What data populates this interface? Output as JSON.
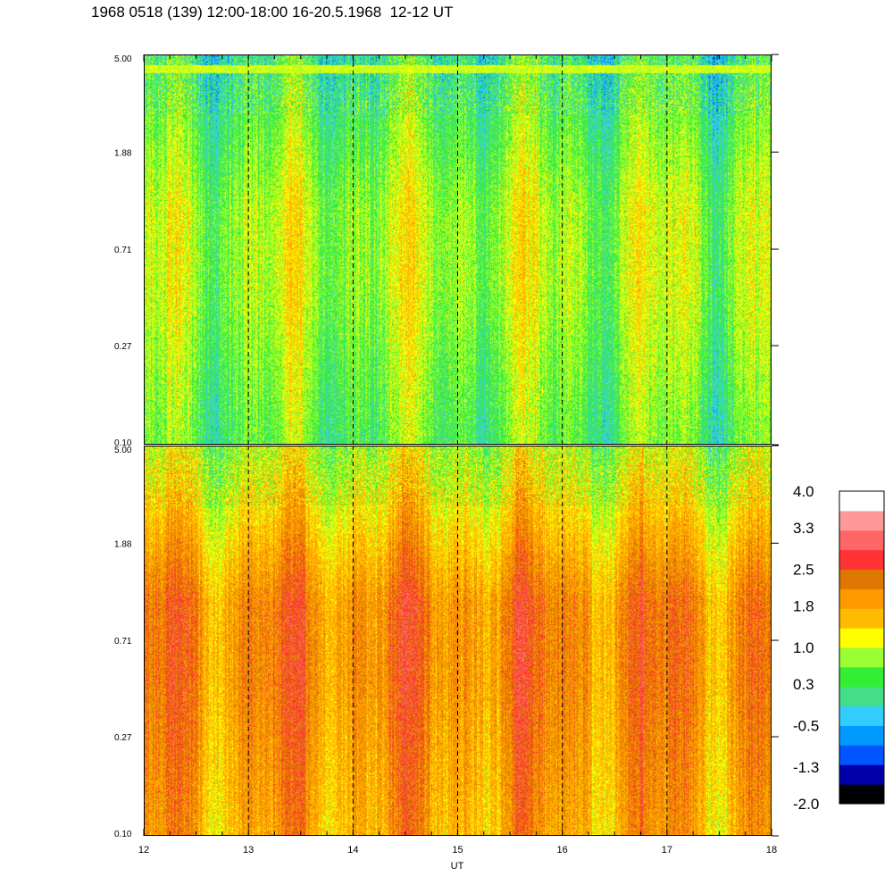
{
  "header": {
    "title": "1968 0518 (139) 12:00-18:00 16-20.5.1968  12-12 UT"
  },
  "chart_data": [
    {
      "type": "heatmap",
      "panel": "top",
      "title": "",
      "xlabel": "",
      "ylabel": "",
      "xlim": [
        12,
        18
      ],
      "ylim": [
        0.1,
        5.0
      ],
      "yscale": "log",
      "yticks": [
        "5.00",
        "1.88",
        "0.71",
        "0.27",
        "0.10"
      ],
      "ytick_values": [
        5.0,
        1.88,
        0.71,
        0.27,
        0.1
      ],
      "vlines": [
        13,
        14,
        15,
        16,
        17
      ],
      "description_values": {
        "high_band": 0.2,
        "mid_band": 0.9,
        "low_band": 0.5
      }
    },
    {
      "type": "heatmap",
      "panel": "bottom",
      "title": "",
      "xlabel": "UT",
      "ylabel": "",
      "xlim": [
        12,
        18
      ],
      "ylim": [
        0.1,
        5.0
      ],
      "yscale": "log",
      "xticks": [
        "12",
        "13",
        "14",
        "15",
        "16",
        "17",
        "18"
      ],
      "xtick_values": [
        12,
        13,
        14,
        15,
        16,
        17,
        18
      ],
      "yticks": [
        "5.00",
        "1.88",
        "0.71",
        "0.27",
        "0.10"
      ],
      "ytick_values": [
        5.0,
        1.88,
        0.71,
        0.27,
        0.1
      ],
      "vlines": [
        13,
        14,
        15,
        16,
        17
      ],
      "description_values": {
        "high_band": 0.9,
        "mid_band": 2.1,
        "low_band": 1.8
      }
    }
  ],
  "colorbar": {
    "range": [
      -2.0,
      4.0
    ],
    "labels": [
      "4.0",
      "3.3",
      "2.5",
      "1.8",
      "1.0",
      "0.3",
      "-0.5",
      "-1.3",
      "-2.0"
    ],
    "label_values": [
      4.0,
      3.3,
      2.5,
      1.8,
      1.0,
      0.3,
      -0.5,
      -1.3,
      -2.0
    ],
    "colors": [
      "#000000",
      "#0000aa",
      "#0055ff",
      "#0099ff",
      "#33ccff",
      "#44dd88",
      "#33ee33",
      "#99ff33",
      "#ffff00",
      "#ffbb00",
      "#ff9900",
      "#dd7700",
      "#ff3333",
      "#ff6666",
      "#ff9999",
      "#ffffff"
    ]
  }
}
